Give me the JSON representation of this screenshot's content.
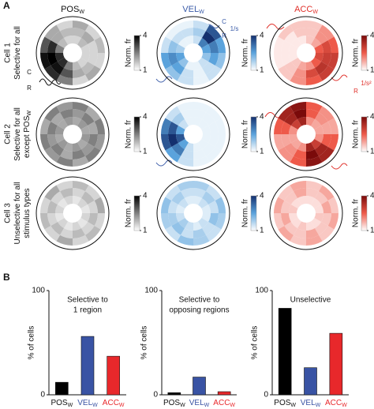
{
  "panel_a": {
    "label": "A",
    "columns": [
      {
        "name": "POS",
        "sub": "W",
        "color": "#111111",
        "colormap": [
          "#ffffff",
          "#000000"
        ]
      },
      {
        "name": "VEL",
        "sub": "W",
        "color": "#3a5ba8",
        "colormap": [
          "#ffffff",
          "#5ba3dc",
          "#14306e"
        ]
      },
      {
        "name": "ACC",
        "sub": "W",
        "color": "#e0302a",
        "colormap": [
          "#ffffff",
          "#ee5a4a",
          "#7a0a0a"
        ]
      }
    ],
    "rows": [
      {
        "cell": "Cell 1",
        "desc": [
          "Selective for all"
        ]
      },
      {
        "cell": "Cell 2",
        "desc": [
          "Selective for all",
          "except POS"
        ],
        "desc_sub": "W"
      },
      {
        "cell": "Cell 3",
        "desc": [
          "Unselective for all",
          "stimulus types"
        ]
      }
    ],
    "colorbar": {
      "label": "Norm. fr",
      "clim": [
        1,
        4
      ],
      "cticks": [
        1,
        4
      ]
    },
    "annotations": [
      "C",
      "R",
      "C",
      "R",
      "1/s",
      "R",
      "1/s²"
    ],
    "maps": [
      [
        [
          [
            1.5,
            1.8,
            1.5,
            1.5,
            1.5,
            1.8,
            2.5,
            3.5,
            3.5,
            2.5,
            1.8,
            1.5
          ],
          [
            1.8,
            2,
            1.5,
            1.5,
            1.8,
            2,
            3,
            3.8,
            4,
            3.5,
            2,
            1.8
          ],
          [
            2,
            1.5,
            1.8,
            1.5,
            2,
            1.5,
            2.5,
            3.5,
            3.8,
            3,
            2,
            1.5
          ]
        ],
        [
          [
            1.5,
            3,
            2.5,
            2,
            1.5,
            1.2,
            1.2,
            2,
            2.5,
            1.8,
            1.2,
            1.2
          ],
          [
            1.8,
            4,
            3,
            2.5,
            1.5,
            1.2,
            1.5,
            2.5,
            2.8,
            2,
            1.5,
            1.5
          ],
          [
            1.5,
            3.5,
            2.5,
            2,
            1.5,
            1.2,
            1.5,
            2,
            2.5,
            1.5,
            1.2,
            1.2
          ]
        ],
        [
          [
            1.5,
            1.8,
            2.5,
            2.8,
            2.5,
            2,
            1.8,
            1.5,
            1.2,
            1.2,
            1.2,
            1.2
          ],
          [
            1.5,
            2,
            2.8,
            3,
            3.2,
            2.8,
            2,
            1.5,
            1.2,
            1.2,
            1.2,
            1.5
          ],
          [
            1.5,
            2,
            2.5,
            3,
            3,
            2.5,
            2,
            1.5,
            1.2,
            1.2,
            1.5,
            1.5
          ]
        ]
      ],
      [
        [
          [
            2,
            2.2,
            2,
            2.2,
            2,
            2.2,
            2,
            2.2,
            2,
            2.2,
            2,
            2.2
          ],
          [
            2.2,
            2.5,
            2,
            2.5,
            2.2,
            2.5,
            2,
            2.5,
            2.2,
            2.5,
            2,
            2.5
          ],
          [
            2.5,
            2,
            2.5,
            2.2,
            2.5,
            2,
            2.5,
            2.2,
            2.5,
            2,
            2.5,
            2.2
          ]
        ],
        [
          [
            1.2,
            1.2,
            1.2,
            1.2,
            1.2,
            1.2,
            1.5,
            2.5,
            3.5,
            2.5,
            1.5,
            1.2
          ],
          [
            1.2,
            1.2,
            1.2,
            1.2,
            1.2,
            1.2,
            1.5,
            3,
            4,
            3.5,
            1.8,
            1.2
          ],
          [
            1.2,
            1.2,
            1.2,
            1.2,
            1.2,
            1.2,
            1.5,
            2.5,
            3.5,
            3,
            1.5,
            1.2
          ]
        ],
        [
          [
            2,
            1.8,
            1.8,
            2,
            3,
            3.5,
            2,
            1.8,
            1.8,
            2,
            3,
            3.5
          ],
          [
            2.5,
            2,
            1.8,
            2.5,
            3.5,
            4,
            2.5,
            2,
            1.8,
            2.5,
            3.5,
            4
          ],
          [
            2.5,
            2,
            1.8,
            2.5,
            3.5,
            3.8,
            2.5,
            2,
            1.8,
            2.5,
            3.5,
            3.8
          ]
        ]
      ],
      [
        [
          [
            1.3,
            1.5,
            1.3,
            1.5,
            1.3,
            1.5,
            1.3,
            1.5,
            1.3,
            1.5,
            1.3,
            1.5
          ],
          [
            1.5,
            1.8,
            1.5,
            1.8,
            1.5,
            1.8,
            1.5,
            1.8,
            1.5,
            1.8,
            1.5,
            1.8
          ],
          [
            1.8,
            1.5,
            2,
            1.5,
            1.8,
            1.5,
            2,
            1.5,
            1.8,
            1.5,
            2,
            1.5
          ]
        ],
        [
          [
            1.3,
            1.5,
            1.3,
            1.3,
            1.5,
            1.3,
            1.5,
            1.8,
            1.5,
            1.3,
            1.5,
            1.3
          ],
          [
            1.5,
            1.8,
            1.5,
            2,
            1.5,
            1.8,
            1.5,
            2,
            1.8,
            1.5,
            1.8,
            1.5
          ],
          [
            1.8,
            1.5,
            2,
            1.8,
            1.5,
            1.8,
            2,
            1.5,
            1.8,
            2,
            1.5,
            1.8
          ]
        ],
        [
          [
            1.3,
            1.3,
            1.3,
            1.5,
            1.3,
            1.3,
            1.5,
            1.3,
            1.3,
            1.5,
            1.3,
            1.3
          ],
          [
            1.5,
            1.5,
            1.8,
            1.5,
            1.5,
            1.8,
            1.5,
            1.5,
            1.8,
            1.5,
            1.5,
            1.8
          ],
          [
            1.5,
            1.8,
            1.5,
            1.8,
            1.5,
            1.8,
            1.5,
            1.8,
            1.5,
            1.8,
            1.5,
            1.8
          ]
        ]
      ]
    ]
  },
  "chart_data": {
    "type": "bar",
    "label": "B",
    "ylabel": "% of cells",
    "ylim": [
      0,
      100
    ],
    "yticks": [
      0,
      100
    ],
    "categories": [
      "POS",
      "VEL",
      "ACC"
    ],
    "category_sub": [
      "W",
      "W",
      "W"
    ],
    "colors": [
      "#000000",
      "#3953a4",
      "#e8282b"
    ],
    "charts": [
      {
        "title": [
          "Selective to",
          "1 region"
        ],
        "values": [
          12,
          56,
          37
        ]
      },
      {
        "title": [
          "Selective to",
          "opposing regions"
        ],
        "values": [
          2,
          17,
          3
        ]
      },
      {
        "title": [
          "Unselective"
        ],
        "values": [
          83,
          26,
          59
        ]
      }
    ]
  }
}
